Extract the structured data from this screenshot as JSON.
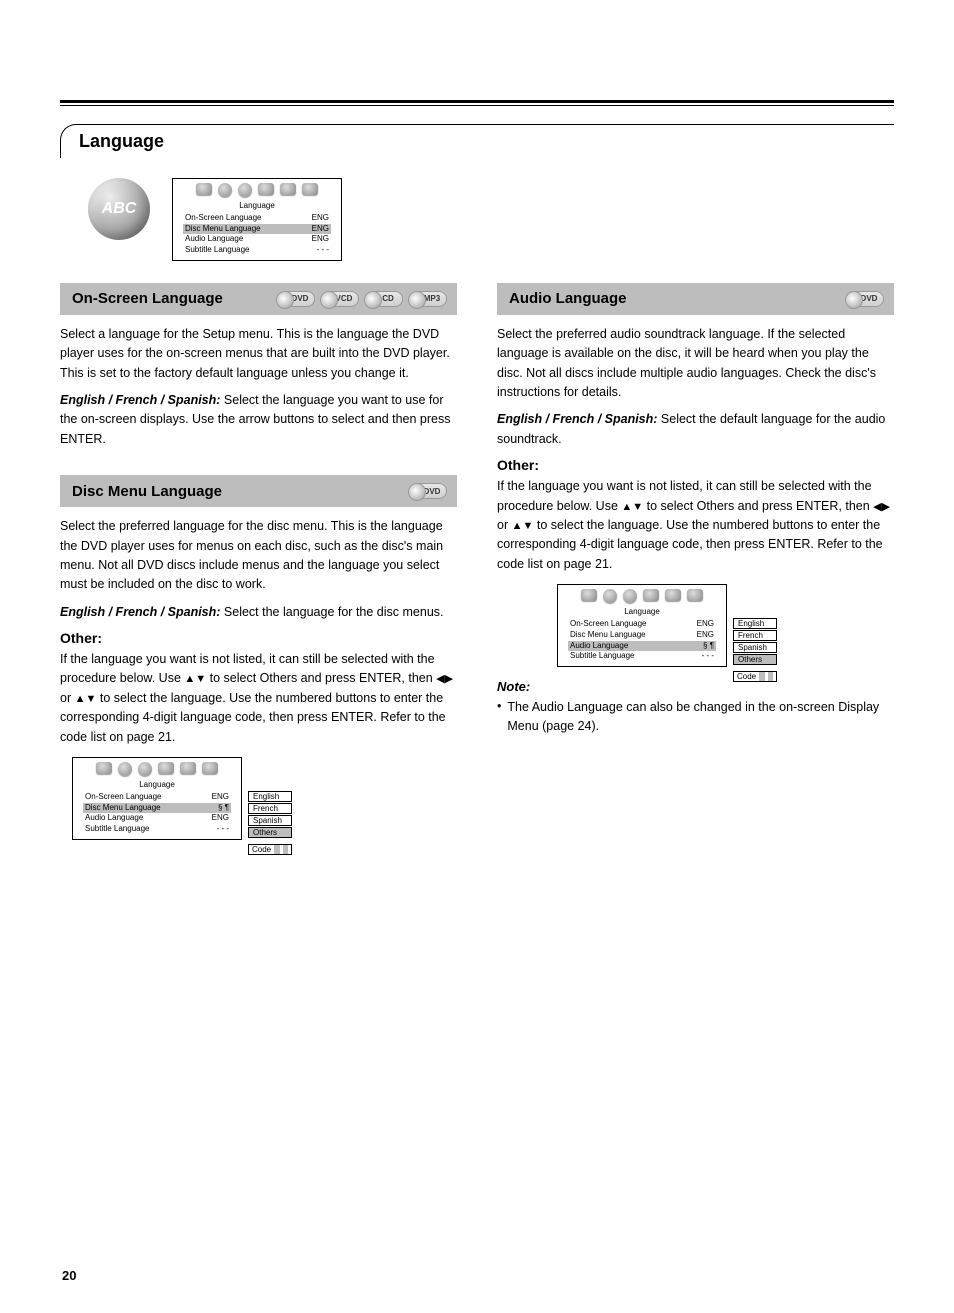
{
  "page_number": "20",
  "section_title": "Language",
  "hero_icon_text": "ABC",
  "osd_main": {
    "title": "Language",
    "rows": [
      {
        "label": "On-Screen Language",
        "value": "ENG",
        "hl": false
      },
      {
        "label": "Disc Menu Language",
        "value": "ENG",
        "hl": true
      },
      {
        "label": "Audio Language",
        "value": "ENG",
        "hl": false
      },
      {
        "label": "Subtitle Language",
        "value": "- - -",
        "hl": false
      }
    ]
  },
  "left": {
    "bar1": {
      "title": "On-Screen Language",
      "tags": [
        "DVD",
        "VCD",
        "CD",
        "MP3"
      ]
    },
    "para1": "Select a language for the Setup menu. This is the language the DVD player uses for the on-screen menus that are built into the DVD player. This is set to the factory default language unless you change it.",
    "step1_label": "English / French / Spanish:",
    "step1_body": " Select the language you want to use for the on-screen displays. Use the arrow buttons to select and then press ENTER.",
    "bar2": {
      "title": "Disc Menu Language",
      "tags": [
        "DVD"
      ]
    },
    "para2": "Select the preferred language for the disc menu. This is the language the DVD player uses for menus on each disc, such as the disc's main menu. Not all DVD discs include menus and the language you select must be included on the disc to work.",
    "step2_label": "English / French / Spanish:",
    "step2_body": " Select the language for the disc menus.",
    "other_head": "Other:",
    "other_para": "If the language you want is not listed, it can still be selected with the procedure below. Use",
    "other_para_b": "to select Others and press ENTER, then",
    "other_para_c": "or",
    "other_para_d": "to select the language. Use the numbered buttons to enter the corresponding 4-digit language code, then press ENTER. Refer to the code list on page 21."
  },
  "right": {
    "bar1": {
      "title": "Audio Language",
      "tags": [
        "DVD"
      ]
    },
    "para1": "Select the preferred audio soundtrack language. If the selected language is available on the disc, it will be heard when you play the disc. Not all discs include multiple audio languages. Check the disc's instructions for details.",
    "step1_label": "English / French / Spanish:",
    "step1_body": " Select the default language for the audio soundtrack.",
    "other_head": "Other:",
    "other_para_a": "If the language you want is not listed, it can still be selected with the procedure below. Use",
    "other_para_b": "to select Others and press ENTER, then",
    "other_para_c": "or",
    "other_para_d": "to select the language. Use the numbered buttons to enter the corresponding 4-digit language code, then press ENTER. Refer to the code list on page 21.",
    "note_head": "Note:",
    "note_body": "The Audio Language can also be changed in the on-screen Display Menu (page 24)."
  },
  "osd_discmenu": {
    "title": "Language",
    "rows": [
      {
        "label": "On-Screen Language",
        "value": "ENG",
        "hl": false
      },
      {
        "label": "Disc Menu Language",
        "value": "§ ¶",
        "hl": true
      },
      {
        "label": "Audio Language",
        "value": "ENG",
        "hl": false
      },
      {
        "label": "Subtitle Language",
        "value": "- - -",
        "hl": false
      }
    ],
    "options": [
      {
        "label": "English",
        "hl": false
      },
      {
        "label": "French",
        "hl": false
      },
      {
        "label": "Spanish",
        "hl": false
      },
      {
        "label": "Others",
        "hl": true
      }
    ],
    "code_label": "Code"
  },
  "osd_audio": {
    "title": "Language",
    "rows": [
      {
        "label": "On-Screen Language",
        "value": "ENG",
        "hl": false
      },
      {
        "label": "Disc Menu Language",
        "value": "ENG",
        "hl": false
      },
      {
        "label": "Audio Language",
        "value": "§ ¶",
        "hl": true
      },
      {
        "label": "Subtitle Language",
        "value": "- - -",
        "hl": false
      }
    ],
    "options": [
      {
        "label": "English",
        "hl": false
      },
      {
        "label": "French",
        "hl": false
      },
      {
        "label": "Spanish",
        "hl": false
      },
      {
        "label": "Others",
        "hl": true
      }
    ],
    "code_label": "Code"
  },
  "colors": {
    "bar_bg": "#bdbdbd",
    "highlight_bg": "#bdbdbd",
    "text": "#000000",
    "page_bg": "#ffffff"
  }
}
